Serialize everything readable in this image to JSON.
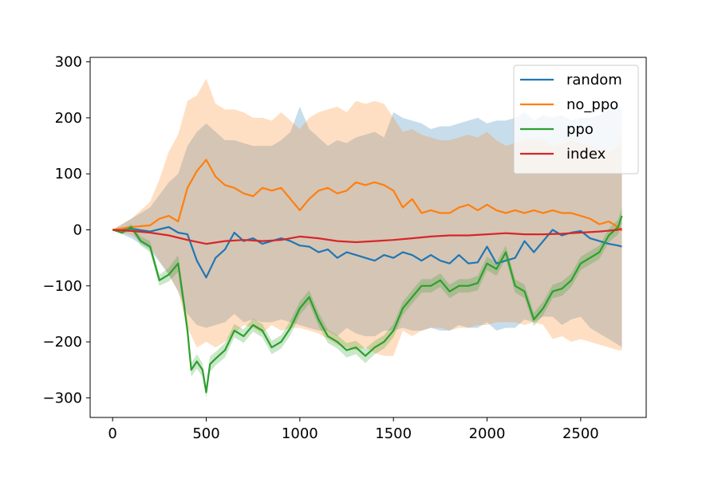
{
  "chart_data": {
    "type": "line",
    "title": "",
    "xlabel": "",
    "ylabel": "",
    "xlim": [
      -120,
      2850
    ],
    "ylim": [
      -335,
      308
    ],
    "x_ticks": [
      0,
      500,
      1000,
      1500,
      2000,
      2500
    ],
    "y_ticks": [
      -300,
      -200,
      -100,
      0,
      100,
      200,
      300
    ],
    "x_tick_labels": [
      "0",
      "500",
      "1000",
      "1500",
      "2000",
      "2500"
    ],
    "y_tick_labels": [
      "−300",
      "−200",
      "−100",
      "0",
      "100",
      "200",
      "300"
    ],
    "grid": false,
    "legend": {
      "placement": "top-right"
    },
    "series": [
      {
        "name": "random",
        "color": "#1f77b4",
        "x": [
          0,
          100,
          200,
          300,
          350,
          400,
          450,
          500,
          550,
          600,
          650,
          700,
          750,
          800,
          850,
          900,
          950,
          1000,
          1050,
          1100,
          1150,
          1200,
          1250,
          1300,
          1350,
          1400,
          1450,
          1500,
          1550,
          1600,
          1650,
          1700,
          1750,
          1800,
          1850,
          1900,
          1950,
          2000,
          2050,
          2100,
          2150,
          2200,
          2250,
          2300,
          2350,
          2400,
          2450,
          2500,
          2550,
          2600,
          2650,
          2700,
          2720
        ],
        "y": [
          0,
          2,
          -3,
          5,
          -5,
          -8,
          -55,
          -85,
          -50,
          -35,
          -5,
          -20,
          -15,
          -25,
          -20,
          -15,
          -20,
          -28,
          -30,
          -40,
          -35,
          -50,
          -40,
          -45,
          -50,
          -55,
          -45,
          -50,
          -40,
          -45,
          -55,
          -45,
          -55,
          -60,
          -45,
          -60,
          -58,
          -30,
          -60,
          -55,
          -50,
          -20,
          -40,
          -20,
          0,
          -10,
          -5,
          -2,
          -15,
          -20,
          -25,
          -28,
          -30
        ],
        "band_lower": [
          0,
          -15,
          -35,
          -80,
          -110,
          -150,
          -170,
          -175,
          -170,
          -165,
          -150,
          -165,
          -160,
          -165,
          -165,
          -160,
          -165,
          -170,
          -175,
          -180,
          -180,
          -190,
          -175,
          -185,
          -190,
          -190,
          -180,
          -180,
          -175,
          -180,
          -180,
          -175,
          -180,
          -180,
          -170,
          -175,
          -175,
          -165,
          -180,
          -175,
          -175,
          -160,
          -165,
          -155,
          -155,
          -170,
          -160,
          -155,
          -175,
          -185,
          -195,
          -205,
          -210
        ],
        "band_upper": [
          0,
          20,
          40,
          85,
          100,
          150,
          175,
          190,
          175,
          160,
          160,
          155,
          150,
          150,
          150,
          160,
          175,
          220,
          180,
          165,
          150,
          160,
          155,
          165,
          170,
          175,
          165,
          210,
          200,
          195,
          190,
          180,
          185,
          185,
          190,
          195,
          200,
          190,
          195,
          195,
          200,
          210,
          195,
          205,
          200,
          205,
          195,
          200,
          200,
          205,
          215,
          225,
          210
        ]
      },
      {
        "name": "no_ppo",
        "color": "#ff7f0e",
        "x": [
          0,
          100,
          200,
          250,
          300,
          350,
          400,
          450,
          500,
          550,
          600,
          650,
          700,
          750,
          800,
          850,
          900,
          950,
          1000,
          1050,
          1100,
          1150,
          1200,
          1250,
          1300,
          1350,
          1400,
          1450,
          1500,
          1550,
          1600,
          1650,
          1700,
          1750,
          1800,
          1850,
          1900,
          1950,
          2000,
          2050,
          2100,
          2150,
          2200,
          2250,
          2300,
          2350,
          2400,
          2450,
          2500,
          2550,
          2600,
          2650,
          2700,
          2720
        ],
        "y": [
          0,
          5,
          8,
          20,
          25,
          15,
          75,
          105,
          125,
          95,
          80,
          75,
          65,
          60,
          75,
          70,
          75,
          55,
          35,
          55,
          70,
          75,
          65,
          70,
          85,
          80,
          85,
          80,
          70,
          40,
          55,
          30,
          35,
          30,
          30,
          40,
          45,
          35,
          45,
          35,
          30,
          35,
          30,
          35,
          30,
          35,
          30,
          30,
          25,
          20,
          10,
          15,
          5,
          -2
        ],
        "band_lower": [
          0,
          -10,
          -30,
          -55,
          -80,
          -110,
          -175,
          -210,
          -200,
          -210,
          -200,
          -185,
          -170,
          -175,
          -185,
          -170,
          -180,
          -175,
          -175,
          -180,
          -185,
          -195,
          -205,
          -210,
          -215,
          -210,
          -220,
          -225,
          -225,
          -180,
          -190,
          -180,
          -175,
          -175,
          -180,
          -175,
          -175,
          -170,
          -170,
          -165,
          -165,
          -165,
          -170,
          -165,
          -170,
          -195,
          -190,
          -200,
          -195,
          -200,
          -205,
          -210,
          -215,
          -215
        ],
        "band_upper": [
          0,
          20,
          50,
          90,
          140,
          170,
          230,
          240,
          270,
          225,
          215,
          215,
          210,
          200,
          200,
          195,
          210,
          195,
          180,
          200,
          210,
          215,
          220,
          210,
          230,
          225,
          230,
          225,
          200,
          175,
          180,
          170,
          165,
          160,
          160,
          165,
          170,
          165,
          175,
          160,
          150,
          155,
          160,
          165,
          160,
          150,
          155,
          160,
          155,
          150,
          145,
          140,
          150,
          170
        ]
      },
      {
        "name": "ppo",
        "color": "#2ca02c",
        "x": [
          0,
          50,
          100,
          150,
          200,
          250,
          300,
          350,
          380,
          400,
          420,
          450,
          480,
          500,
          520,
          550,
          600,
          650,
          700,
          750,
          800,
          850,
          900,
          950,
          1000,
          1050,
          1100,
          1150,
          1200,
          1250,
          1300,
          1350,
          1400,
          1450,
          1500,
          1550,
          1600,
          1650,
          1700,
          1750,
          1800,
          1850,
          1900,
          1950,
          2000,
          2050,
          2100,
          2150,
          2200,
          2250,
          2300,
          2350,
          2400,
          2450,
          2500,
          2550,
          2600,
          2650,
          2700,
          2720
        ],
        "y": [
          0,
          -5,
          5,
          -20,
          -30,
          -90,
          -80,
          -60,
          -130,
          -180,
          -250,
          -235,
          -250,
          -290,
          -240,
          -230,
          -215,
          -180,
          -190,
          -170,
          -180,
          -210,
          -200,
          -175,
          -140,
          -120,
          -160,
          -190,
          -200,
          -215,
          -210,
          -225,
          -210,
          -200,
          -180,
          -140,
          -120,
          -100,
          -100,
          -90,
          -110,
          -100,
          -100,
          -95,
          -60,
          -70,
          -40,
          -100,
          -110,
          -160,
          -140,
          -110,
          -105,
          -90,
          -60,
          -50,
          -40,
          -10,
          5,
          25
        ],
        "band_lower": [
          0,
          -8,
          0,
          -28,
          -40,
          -100,
          -92,
          -75,
          -145,
          -195,
          -262,
          -248,
          -262,
          -300,
          -254,
          -242,
          -228,
          -192,
          -202,
          -182,
          -192,
          -222,
          -212,
          -188,
          -152,
          -132,
          -172,
          -202,
          -212,
          -228,
          -222,
          -238,
          -222,
          -212,
          -192,
          -152,
          -132,
          -112,
          -112,
          -102,
          -122,
          -112,
          -112,
          -108,
          -72,
          -82,
          -52,
          -112,
          -122,
          -172,
          -152,
          -122,
          -118,
          -102,
          -72,
          -62,
          -52,
          -22,
          -8,
          10
        ],
        "band_upper": [
          0,
          2,
          10,
          -12,
          -20,
          -80,
          -68,
          -45,
          -115,
          -165,
          -238,
          -222,
          -238,
          -280,
          -226,
          -218,
          -202,
          -168,
          -178,
          -158,
          -168,
          -198,
          -188,
          -162,
          -128,
          -108,
          -148,
          -178,
          -188,
          -202,
          -198,
          -212,
          -198,
          -188,
          -168,
          -128,
          -108,
          -88,
          -88,
          -78,
          -98,
          -88,
          -88,
          -82,
          -48,
          -58,
          -28,
          -88,
          -98,
          -148,
          -128,
          -98,
          -92,
          -78,
          -48,
          -38,
          -28,
          2,
          18,
          40
        ]
      },
      {
        "name": "index",
        "color": "#d62728",
        "x": [
          0,
          100,
          200,
          300,
          400,
          500,
          600,
          700,
          800,
          900,
          1000,
          1100,
          1200,
          1300,
          1400,
          1500,
          1600,
          1700,
          1800,
          1900,
          2000,
          2100,
          2200,
          2300,
          2400,
          2500,
          2600,
          2700,
          2720
        ],
        "y": [
          0,
          -2,
          -5,
          -10,
          -18,
          -25,
          -20,
          -18,
          -20,
          -18,
          -12,
          -15,
          -20,
          -22,
          -20,
          -18,
          -15,
          -12,
          -10,
          -10,
          -8,
          -6,
          -8,
          -8,
          -7,
          -5,
          -3,
          0,
          2
        ]
      }
    ]
  }
}
